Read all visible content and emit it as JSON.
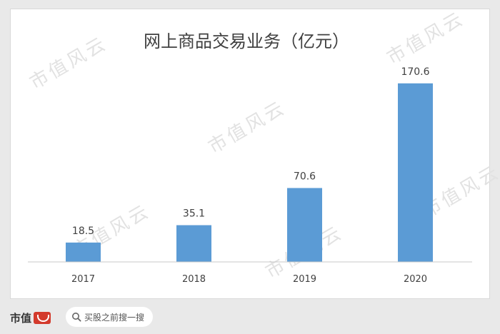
{
  "chart_data": {
    "type": "bar",
    "title": "网上商品交易业务（亿元）",
    "categories": [
      "2017",
      "2018",
      "2019",
      "2020"
    ],
    "values": [
      18.5,
      35.1,
      70.6,
      170.6
    ],
    "value_labels": [
      "18.5",
      "35.1",
      "70.6",
      "170.6"
    ],
    "ylim": [
      0,
      180
    ],
    "grid": false,
    "bar_color": "#5b9bd5"
  },
  "watermark": {
    "text": "市值风云"
  },
  "footer": {
    "brand": "市值",
    "search_placeholder": "买股之前搜一搜"
  }
}
